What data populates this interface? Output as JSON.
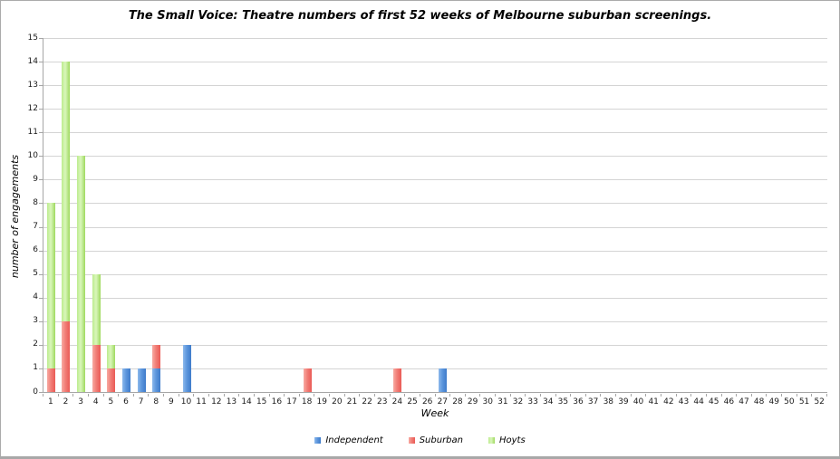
{
  "chart_data": {
    "type": "bar",
    "stacked": true,
    "title": "The Small Voice: Theatre numbers of first 52 weeks of Melbourne suburban screenings.",
    "xlabel": "Week",
    "ylabel": "number of engagements",
    "ylim": [
      0,
      15
    ],
    "ytick_step": 1,
    "grid": true,
    "legend_position": "bottom",
    "categories": [
      1,
      2,
      3,
      4,
      5,
      6,
      7,
      8,
      9,
      10,
      11,
      12,
      13,
      14,
      15,
      16,
      17,
      18,
      19,
      20,
      21,
      22,
      23,
      24,
      25,
      26,
      27,
      28,
      29,
      30,
      31,
      32,
      33,
      34,
      35,
      36,
      37,
      38,
      39,
      40,
      41,
      42,
      43,
      44,
      45,
      46,
      47,
      48,
      49,
      50,
      51,
      52
    ],
    "series": [
      {
        "name": "Independent",
        "key": "independent",
        "color": "#5b92db",
        "values": [
          0,
          0,
          0,
          0,
          0,
          1,
          1,
          1,
          0,
          2,
          0,
          0,
          0,
          0,
          0,
          0,
          0,
          0,
          0,
          0,
          0,
          0,
          0,
          0,
          0,
          0,
          1,
          0,
          0,
          0,
          0,
          0,
          0,
          0,
          0,
          0,
          0,
          0,
          0,
          0,
          0,
          0,
          0,
          0,
          0,
          0,
          0,
          0,
          0,
          0,
          0,
          0
        ]
      },
      {
        "name": "Suburban",
        "key": "suburban",
        "color": "#ee625e",
        "values": [
          1,
          3,
          0,
          2,
          1,
          0,
          0,
          1,
          0,
          0,
          0,
          0,
          0,
          0,
          0,
          0,
          0,
          1,
          0,
          0,
          0,
          0,
          0,
          1,
          0,
          0,
          0,
          0,
          0,
          0,
          0,
          0,
          0,
          0,
          0,
          0,
          0,
          0,
          0,
          0,
          0,
          0,
          0,
          0,
          0,
          0,
          0,
          0,
          0,
          0,
          0,
          0
        ]
      },
      {
        "name": "Hoyts",
        "key": "hoyts",
        "color": "#b2e87b",
        "values": [
          7,
          11,
          10,
          3,
          1,
          0,
          0,
          0,
          0,
          0,
          0,
          0,
          0,
          0,
          0,
          0,
          0,
          0,
          0,
          0,
          0,
          0,
          0,
          0,
          0,
          0,
          0,
          0,
          0,
          0,
          0,
          0,
          0,
          0,
          0,
          0,
          0,
          0,
          0,
          0,
          0,
          0,
          0,
          0,
          0,
          0,
          0,
          0,
          0,
          0,
          0,
          0
        ]
      }
    ]
  },
  "colors": {
    "gridline": "#d4d4d4",
    "axis": "#a6a6a6",
    "background": "#ffffff",
    "text": "#1a1a1a"
  }
}
